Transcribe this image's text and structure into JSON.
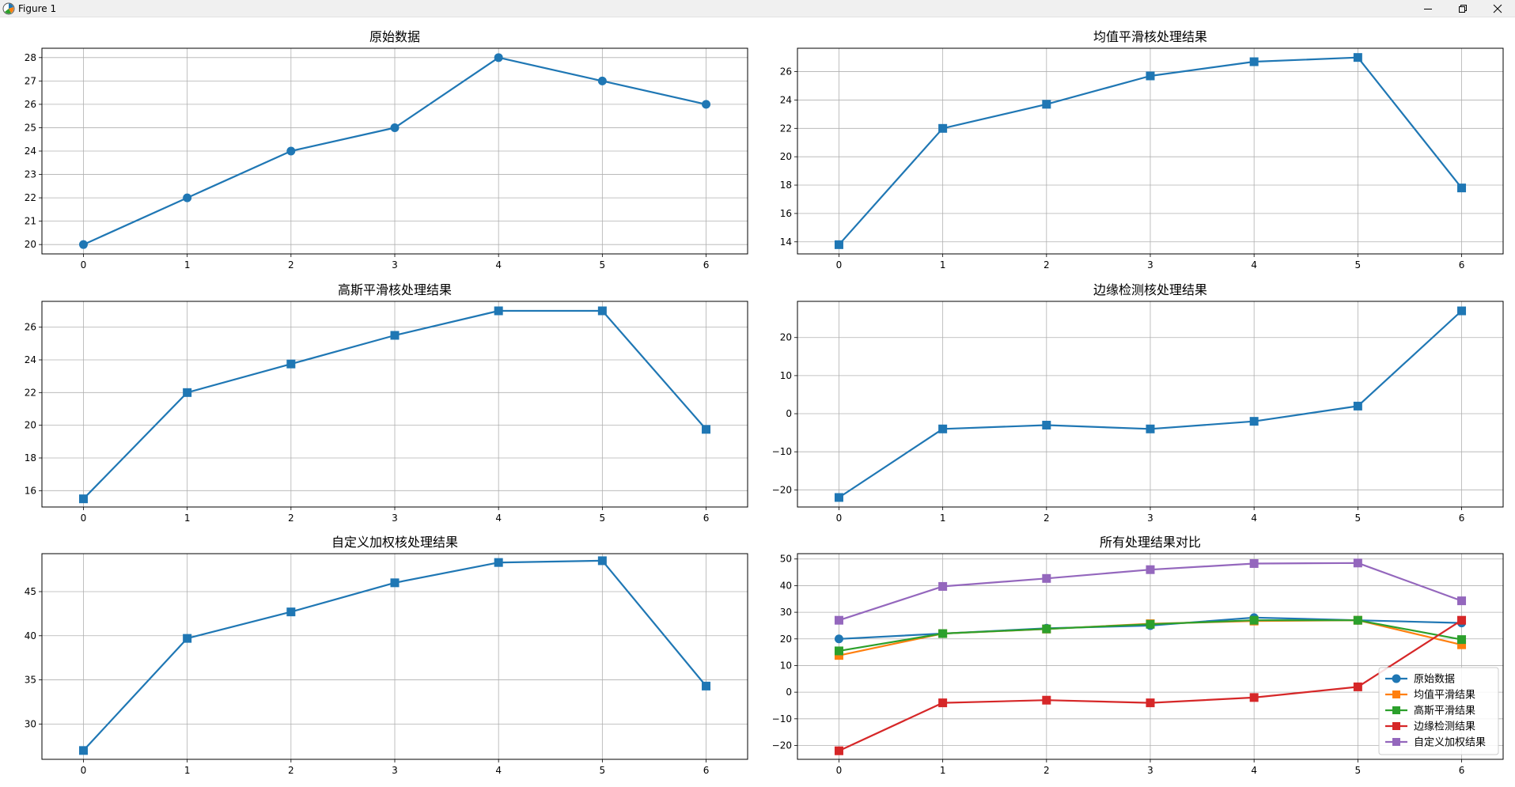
{
  "window": {
    "title": "Figure 1",
    "icons": {
      "app": "matplotlib-icon",
      "minimize": "minimize-icon",
      "restore": "restore-icon",
      "close": "close-icon"
    }
  },
  "colors": {
    "blue": "#1f77b4",
    "orange": "#ff7f0e",
    "green": "#2ca02c",
    "red": "#d62728",
    "purple": "#9467bd",
    "grid": "#b0b0b0"
  },
  "chart_data": [
    {
      "type": "line",
      "title": "原始数据",
      "x": [
        0,
        1,
        2,
        3,
        4,
        5,
        6
      ],
      "xticks": [
        "0",
        "1",
        "2",
        "3",
        "4",
        "5",
        "6"
      ],
      "yticks": [
        "20",
        "21",
        "22",
        "23",
        "24",
        "25",
        "26",
        "27",
        "28"
      ],
      "ylim": [
        19.6,
        28.4
      ],
      "grid": true,
      "series": [
        {
          "values": [
            20,
            22,
            24,
            25,
            28,
            27,
            26
          ],
          "color": "#1f77b4",
          "marker": "circle"
        }
      ]
    },
    {
      "type": "line",
      "title": "均值平滑核处理结果",
      "x": [
        0,
        1,
        2,
        3,
        4,
        5,
        6
      ],
      "xticks": [
        "0",
        "1",
        "2",
        "3",
        "4",
        "5",
        "6"
      ],
      "yticks": [
        "14",
        "16",
        "18",
        "20",
        "22",
        "24",
        "26"
      ],
      "ylim": [
        13.15,
        27.65
      ],
      "grid": true,
      "series": [
        {
          "values": [
            13.8,
            22,
            23.7,
            25.7,
            26.7,
            27,
            17.8
          ],
          "color": "#1f77b4",
          "marker": "square"
        }
      ]
    },
    {
      "type": "line",
      "title": "高斯平滑核处理结果",
      "x": [
        0,
        1,
        2,
        3,
        4,
        5,
        6
      ],
      "xticks": [
        "0",
        "1",
        "2",
        "3",
        "4",
        "5",
        "6"
      ],
      "yticks": [
        "16",
        "18",
        "20",
        "22",
        "24",
        "26"
      ],
      "ylim": [
        15,
        27.58
      ],
      "grid": true,
      "series": [
        {
          "values": [
            15.5,
            22,
            23.75,
            25.5,
            27,
            27,
            19.75
          ],
          "color": "#1f77b4",
          "marker": "square"
        }
      ]
    },
    {
      "type": "line",
      "title": "边缘检测核处理结果",
      "x": [
        0,
        1,
        2,
        3,
        4,
        5,
        6
      ],
      "xticks": [
        "0",
        "1",
        "2",
        "3",
        "4",
        "5",
        "6"
      ],
      "yticks": [
        "−20",
        "−10",
        "0",
        "10",
        "20"
      ],
      "ylim": [
        -24.5,
        29.5
      ],
      "grid": true,
      "series": [
        {
          "values": [
            -22,
            -4,
            -3,
            -4,
            -2,
            2,
            27
          ],
          "color": "#1f77b4",
          "marker": "square"
        }
      ]
    },
    {
      "type": "line",
      "title": "自定义加权核处理结果",
      "x": [
        0,
        1,
        2,
        3,
        4,
        5,
        6
      ],
      "xticks": [
        "0",
        "1",
        "2",
        "3",
        "4",
        "5",
        "6"
      ],
      "yticks": [
        "30",
        "35",
        "40",
        "45"
      ],
      "ylim": [
        26,
        49.3
      ],
      "grid": true,
      "series": [
        {
          "values": [
            27,
            39.7,
            42.7,
            46,
            48.3,
            48.5,
            34.3
          ],
          "color": "#1f77b4",
          "marker": "square"
        }
      ]
    },
    {
      "type": "line",
      "title": "所有处理结果对比",
      "x": [
        0,
        1,
        2,
        3,
        4,
        5,
        6
      ],
      "xticks": [
        "0",
        "1",
        "2",
        "3",
        "4",
        "5",
        "6"
      ],
      "yticks": [
        "−20",
        "−10",
        "0",
        "10",
        "20",
        "30",
        "40",
        "50"
      ],
      "ylim": [
        -25.2,
        52
      ],
      "grid": true,
      "legend": "lower-right",
      "series": [
        {
          "name": "原始数据",
          "values": [
            20,
            22,
            24,
            25,
            28,
            27,
            26
          ],
          "color": "#1f77b4",
          "marker": "circle"
        },
        {
          "name": "均值平滑结果",
          "values": [
            13.8,
            22,
            23.7,
            25.7,
            26.7,
            27,
            17.8
          ],
          "color": "#ff7f0e",
          "marker": "square"
        },
        {
          "name": "高斯平滑结果",
          "values": [
            15.5,
            22,
            23.75,
            25.5,
            27,
            27,
            19.75
          ],
          "color": "#2ca02c",
          "marker": "square"
        },
        {
          "name": "边缘检测结果",
          "values": [
            -22,
            -4,
            -3,
            -4,
            -2,
            2,
            27
          ],
          "color": "#d62728",
          "marker": "square"
        },
        {
          "name": "自定义加权结果",
          "values": [
            27,
            39.7,
            42.7,
            46,
            48.3,
            48.5,
            34.3
          ],
          "color": "#9467bd",
          "marker": "square"
        }
      ]
    }
  ]
}
